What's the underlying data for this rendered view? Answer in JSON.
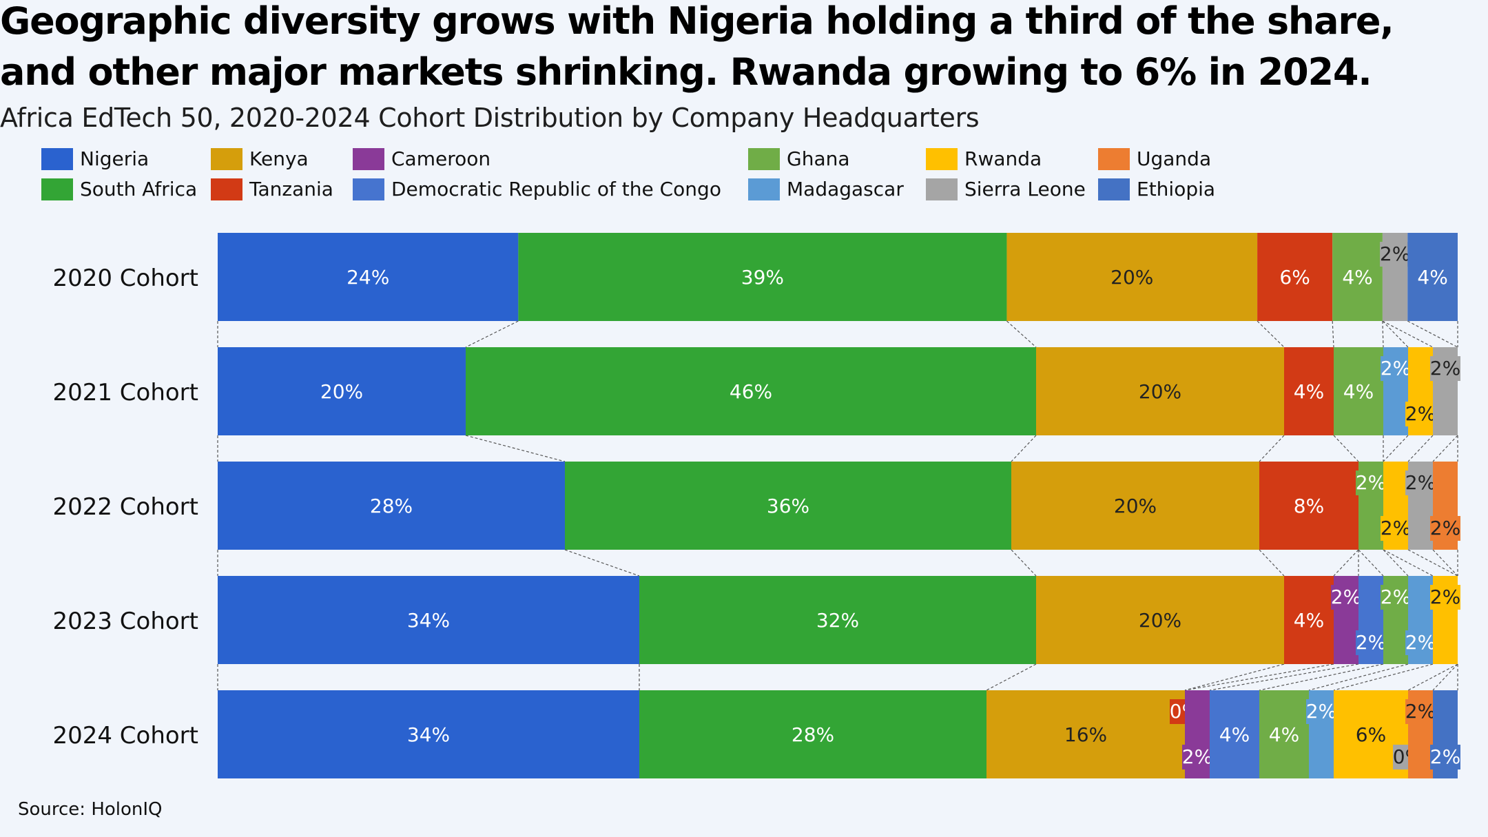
{
  "title_line1": "Geographic diversity grows with Nigeria holding a third of the share,",
  "title_line2": "and other major markets shrinking. Rwanda growing to 6% in 2024.",
  "subtitle": "Africa EdTech 50, 2020-2024 Cohort Distribution by Company Headquarters",
  "source": "Source: HolonIQ",
  "legend": [
    {
      "name": "Nigeria",
      "color": "#2a62cf"
    },
    {
      "name": "South Africa",
      "color": "#33a535"
    },
    {
      "name": "Kenya",
      "color": "#d59e0c"
    },
    {
      "name": "Tanzania",
      "color": "#d23a15"
    },
    {
      "name": "Cameroon",
      "color": "#8a3a98"
    },
    {
      "name": "Democratic Republic of the Congo",
      "color": "#4674cf"
    },
    {
      "name": "Ghana",
      "color": "#70ad47"
    },
    {
      "name": "Madagascar",
      "color": "#5b9bd5"
    },
    {
      "name": "Rwanda",
      "color": "#ffc000"
    },
    {
      "name": "Sierra Leone",
      "color": "#a5a5a5"
    },
    {
      "name": "Uganda",
      "color": "#ed7d31"
    },
    {
      "name": "Ethiopia",
      "color": "#4472c4"
    }
  ],
  "chart_data": {
    "type": "bar",
    "orientation": "horizontal",
    "stacked": "100%",
    "title": "Geographic diversity grows with Nigeria holding a third of the share, and other major markets shrinking. Rwanda growing to 6% in 2024.",
    "subtitle": "Africa EdTech 50, 2020-2024 Cohort Distribution by Company Headquarters",
    "categories": [
      "2020 Cohort",
      "2021 Cohort",
      "2022 Cohort",
      "2023 Cohort",
      "2024 Cohort"
    ],
    "grid": false,
    "legend_position": "top",
    "series": [
      {
        "name": "Nigeria",
        "color": "#2a62cf",
        "values": [
          24,
          20,
          28,
          34,
          34
        ],
        "labels": [
          "24%",
          "20%",
          "28%",
          "34%",
          "34%"
        ]
      },
      {
        "name": "South Africa",
        "color": "#33a535",
        "values": [
          39,
          46,
          36,
          32,
          28
        ],
        "labels": [
          "39%",
          "46%",
          "36%",
          "32%",
          "28%"
        ]
      },
      {
        "name": "Kenya",
        "color": "#d59e0c",
        "values": [
          20,
          20,
          20,
          20,
          16
        ],
        "labels": [
          "20%",
          "20%",
          "20%",
          "20%",
          "16%"
        ]
      },
      {
        "name": "Tanzania",
        "color": "#d23a15",
        "values": [
          6,
          4,
          8,
          4,
          0
        ],
        "labels": [
          "6%",
          "4%",
          "8%",
          "4%",
          "0%"
        ]
      },
      {
        "name": "Cameroon",
        "color": "#8a3a98",
        "values": [
          0,
          0,
          0,
          2,
          2
        ],
        "labels": [
          "",
          "",
          "",
          "2%",
          "2%"
        ]
      },
      {
        "name": "Democratic Republic of the Congo",
        "color": "#4674cf",
        "values": [
          0,
          0,
          0,
          2,
          4
        ],
        "labels": [
          "",
          "",
          "",
          "2%",
          "4%"
        ]
      },
      {
        "name": "Ghana",
        "color": "#70ad47",
        "values": [
          4,
          4,
          2,
          2,
          4
        ],
        "labels": [
          "4%",
          "4%",
          "2%",
          "2%",
          "4%"
        ]
      },
      {
        "name": "Madagascar",
        "color": "#5b9bd5",
        "values": [
          0,
          2,
          0,
          2,
          2
        ],
        "labels": [
          "",
          "2%",
          "",
          "2%",
          "2%"
        ]
      },
      {
        "name": "Rwanda",
        "color": "#ffc000",
        "values": [
          0,
          2,
          2,
          2,
          6
        ],
        "labels": [
          "",
          "2%",
          "2%",
          "2%",
          "6%"
        ]
      },
      {
        "name": "Sierra Leone",
        "color": "#a5a5a5",
        "values": [
          2,
          2,
          2,
          0,
          0
        ],
        "labels": [
          "2%",
          "2%",
          "2%",
          "",
          "0%"
        ]
      },
      {
        "name": "Uganda",
        "color": "#ed7d31",
        "values": [
          0,
          0,
          2,
          0,
          2
        ],
        "labels": [
          "",
          "",
          "2%",
          "",
          "2%"
        ]
      },
      {
        "name": "Ethiopia",
        "color": "#4472c4",
        "values": [
          4,
          0,
          0,
          0,
          2
        ],
        "labels": [
          "4%",
          "",
          "",
          "",
          "2%"
        ]
      }
    ]
  }
}
